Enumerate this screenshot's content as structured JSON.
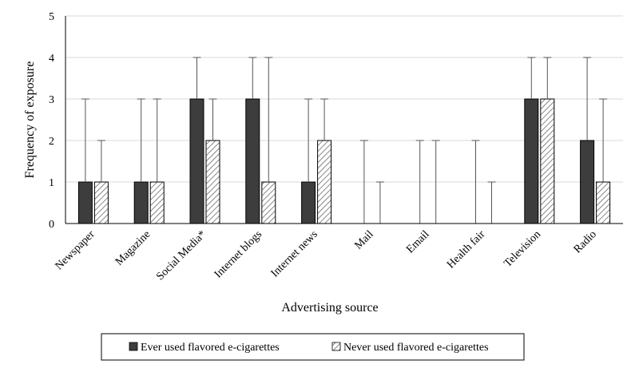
{
  "chart_data": {
    "type": "bar",
    "title": "",
    "xlabel": "Advertising source",
    "ylabel": "Frequency of exposure",
    "ylim": [
      0,
      5
    ],
    "yticks": [
      0,
      1,
      2,
      3,
      4,
      5
    ],
    "grid": true,
    "legend_position": "bottom",
    "categories": [
      "Newspaper",
      "Magazine",
      "Social Media*",
      "Internet blogs",
      "Internet news",
      "Mail",
      "Email",
      "Health fair",
      "Television",
      "Radio"
    ],
    "series": [
      {
        "name": "Ever used flavored e-cigarettes",
        "color": "#3d3d3d",
        "pattern": "solid",
        "values": [
          1,
          1,
          3,
          3,
          1,
          0,
          0,
          0,
          3,
          2
        ],
        "error_upper": [
          3,
          3,
          4,
          4,
          3,
          2,
          2,
          2,
          4,
          4
        ]
      },
      {
        "name": "Never used flavored e-cigarettes",
        "color": "#ffffff",
        "pattern": "diagonal-hatch",
        "values": [
          1,
          1,
          2,
          1,
          2,
          0,
          0,
          0,
          3,
          1
        ],
        "error_upper": [
          2,
          3,
          3,
          4,
          3,
          1,
          2,
          1,
          4,
          3
        ]
      }
    ]
  }
}
